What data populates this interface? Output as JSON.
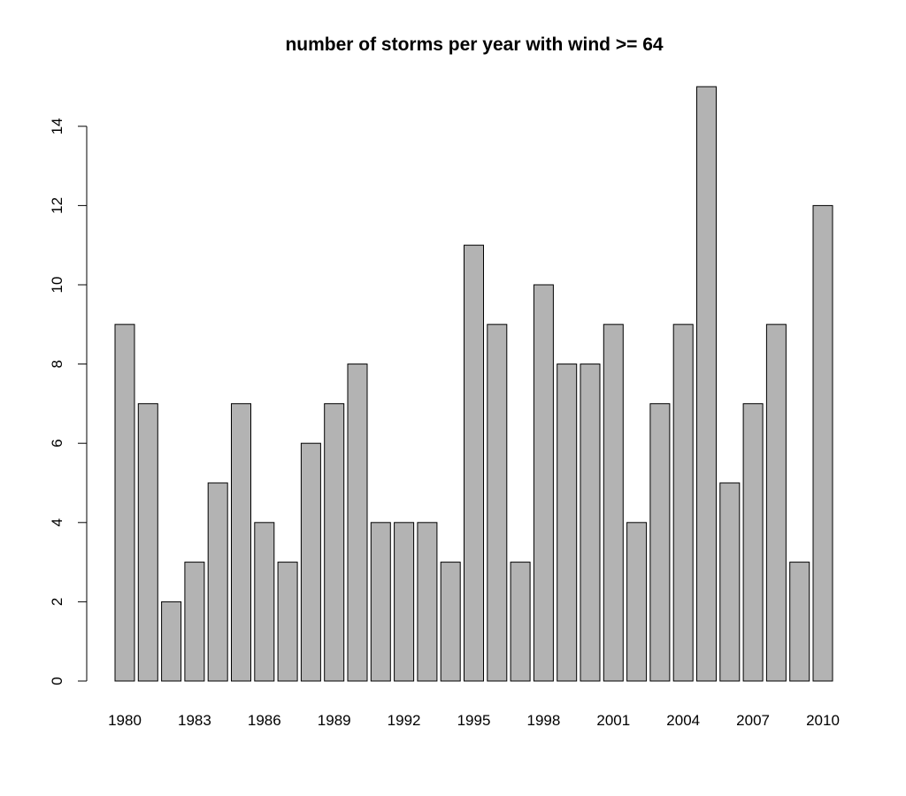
{
  "chart_data": {
    "type": "bar",
    "title": "number of storms per year with wind >= 64",
    "xlabel": "",
    "ylabel": "",
    "categories": [
      "1980",
      "1981",
      "1982",
      "1983",
      "1984",
      "1985",
      "1986",
      "1987",
      "1988",
      "1989",
      "1990",
      "1991",
      "1992",
      "1993",
      "1994",
      "1995",
      "1996",
      "1997",
      "1998",
      "1999",
      "2000",
      "2001",
      "2002",
      "2003",
      "2004",
      "2005",
      "2006",
      "2007",
      "2008",
      "2009",
      "2010"
    ],
    "values": [
      9,
      7,
      2,
      3,
      5,
      7,
      4,
      3,
      6,
      7,
      8,
      4,
      4,
      4,
      3,
      11,
      9,
      3,
      10,
      8,
      8,
      9,
      4,
      7,
      9,
      15,
      5,
      7,
      9,
      3,
      12
    ],
    "x_tick_labels": [
      "1980",
      "1983",
      "1986",
      "1989",
      "1992",
      "1995",
      "1998",
      "2001",
      "2004",
      "2007",
      "2010"
    ],
    "y_ticks": [
      0,
      2,
      4,
      6,
      8,
      10,
      12,
      14
    ],
    "ylim": [
      0,
      15
    ],
    "bar_color": "#b3b3b3",
    "bar_border_color": "#000000",
    "grid": false,
    "legend": "none"
  }
}
